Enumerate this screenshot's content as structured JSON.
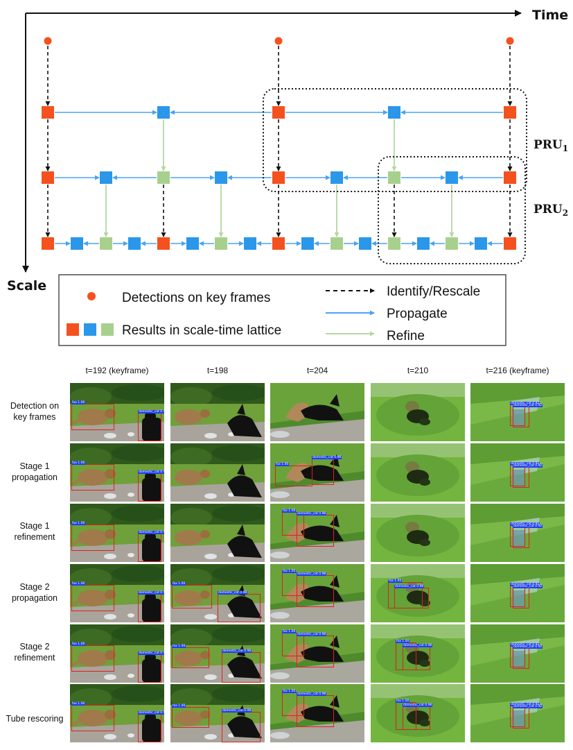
{
  "diagram": {
    "time_label": "Time",
    "scale_label": "Scale",
    "pru1_label": "PRU",
    "pru1_sub": "1",
    "pru2_label": "PRU",
    "pru2_sub": "2",
    "legend": {
      "detections": "Detections on key frames",
      "results": "Results in scale-time lattice",
      "identify": "Identify/Rescale",
      "propagate": "Propagate",
      "refine": "Refine"
    },
    "colors": {
      "keyframe": "#f4511e",
      "propagate": "#2b97ea",
      "refine": "#a8d08d",
      "propagate_line": "#4aa3f0",
      "refine_line": "#b5d7a1"
    }
  },
  "grid": {
    "columns": [
      "t=192 (keyframe)",
      "t=198",
      "t=204",
      "t=210",
      "t=216 (keyframe)"
    ],
    "rows": [
      {
        "label_1": "Detection on",
        "label_2": "key frames"
      },
      {
        "label_1": "Stage 1",
        "label_2": "propagation"
      },
      {
        "label_1": "Stage 1",
        "label_2": "refinement"
      },
      {
        "label_1": "Stage 2",
        "label_2": "propagation"
      },
      {
        "label_1": "Stage 2",
        "label_2": "refinement"
      },
      {
        "label_1": "Tube rescoring",
        "label_2": ""
      }
    ],
    "tags": {
      "fox": "fox 1.00",
      "cat": "domestic_cat 0.98",
      "cat_kf2": "domestic_cat 0.92"
    }
  }
}
